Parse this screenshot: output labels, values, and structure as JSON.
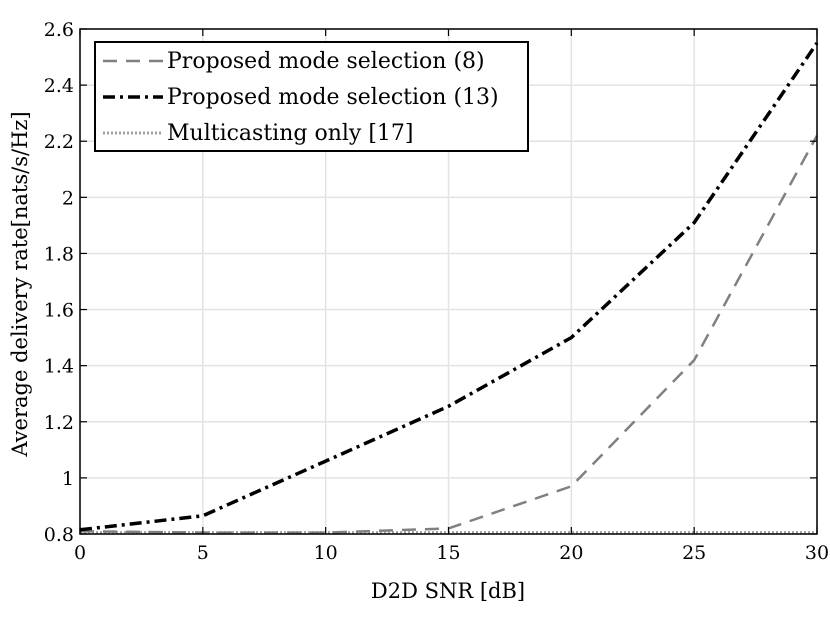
{
  "chart_data": {
    "type": "line",
    "xlabel": "D2D SNR [dB]",
    "ylabel": "Average delivery rate[nats/s/Hz]",
    "xlim": [
      0,
      30
    ],
    "ylim": [
      0.8,
      2.6
    ],
    "xticks": [
      0,
      5,
      10,
      15,
      20,
      25,
      30
    ],
    "yticks": [
      0.8,
      1,
      1.2,
      1.4,
      1.6,
      1.8,
      2,
      2.2,
      2.4,
      2.6
    ],
    "xtick_labels": [
      "0",
      "5",
      "10",
      "15",
      "20",
      "25",
      "30"
    ],
    "ytick_labels": [
      "0.8",
      "1",
      "1.2",
      "1.4",
      "1.6",
      "1.8",
      "2",
      "2.2",
      "2.4",
      "2.6"
    ],
    "grid": true,
    "legend_position": "top-left",
    "x": [
      0,
      5,
      10,
      15,
      20,
      25,
      30
    ],
    "series": [
      {
        "name": "Proposed mode selection (8)",
        "values": [
          0.81,
          0.805,
          0.805,
          0.82,
          0.97,
          1.42,
          2.22
        ],
        "color": "#808080",
        "style": "dashed"
      },
      {
        "name": "Proposed mode selection (13)",
        "values": [
          0.815,
          0.865,
          1.06,
          1.255,
          1.5,
          1.91,
          2.55
        ],
        "color": "#000000",
        "style": "dash-dot"
      },
      {
        "name": "Multicasting only [17]",
        "values": [
          0.805,
          0.805,
          0.805,
          0.805,
          0.805,
          0.805,
          0.805
        ],
        "color": "#a0a0a0",
        "style": "dotted"
      }
    ]
  }
}
